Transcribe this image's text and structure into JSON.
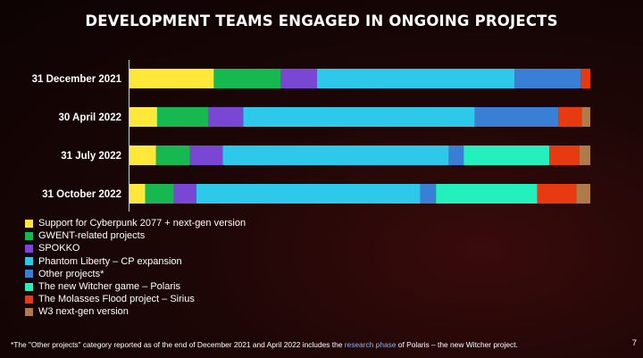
{
  "title": "DEVELOPMENT TEAMS ENGAGED IN ONGOING PROJECTS",
  "chart_data": {
    "type": "bar",
    "orientation": "horizontal",
    "stacked": true,
    "normalized_percent": true,
    "categories": [
      "31 December 2021",
      "30 April 2022",
      "31 July 2022",
      "31 October 2022"
    ],
    "series": [
      {
        "name": "Support for Cyberpunk 2077 + next-gen version",
        "color": "#ffe83a",
        "values": [
          18.3,
          6.0,
          5.8,
          3.4
        ]
      },
      {
        "name": "GWENT-related projects",
        "color": "#17b850",
        "values": [
          14.6,
          11.2,
          7.4,
          6.2
        ]
      },
      {
        "name": "SPOKKO",
        "color": "#7a47d4",
        "values": [
          7.8,
          7.5,
          7.1,
          4.9
        ]
      },
      {
        "name": "Phantom Liberty – CP expansion",
        "color": "#2ec8ea",
        "values": [
          42.9,
          50.2,
          49.3,
          48.6
        ]
      },
      {
        "name": "Other projects*",
        "color": "#3a7fd6",
        "values": [
          14.4,
          18.2,
          3.2,
          3.4
        ]
      },
      {
        "name": "The new Witcher game – Polaris",
        "color": "#24f0bd",
        "values": [
          0,
          0,
          18.7,
          22.0
        ]
      },
      {
        "name": "The Molasses Flood project – Sirius",
        "color": "#e83a10",
        "values": [
          2.0,
          5.0,
          6.5,
          8.5
        ]
      },
      {
        "name": "W3 next-gen version",
        "color": "#b07a4a",
        "values": [
          0,
          1.9,
          2.4,
          3.0
        ]
      }
    ],
    "grid": false,
    "legend_position": "bottom-left"
  },
  "footnote": {
    "before": "*The \"Other projects\" category reported as of the end of December 2021 and April 2022 includes the ",
    "link": "research phase",
    "after": " of Polaris – the new Witcher project."
  },
  "page_number": "7"
}
